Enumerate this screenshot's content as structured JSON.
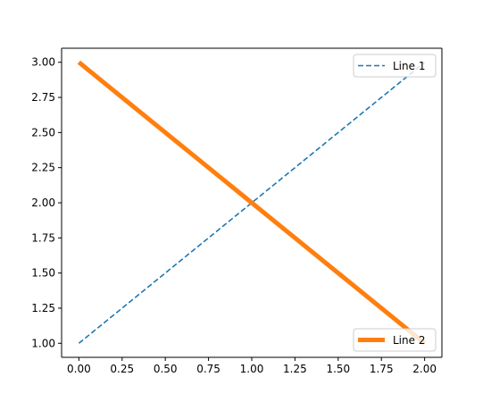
{
  "chart_data": {
    "type": "line",
    "title": "",
    "xlabel": "",
    "ylabel": "",
    "xlim": [
      -0.1,
      2.1
    ],
    "ylim": [
      0.9,
      3.1
    ],
    "x_ticks": [
      0.0,
      0.25,
      0.5,
      0.75,
      1.0,
      1.25,
      1.5,
      1.75,
      2.0
    ],
    "x_tick_labels": [
      "0.00",
      "0.25",
      "0.50",
      "0.75",
      "1.00",
      "1.25",
      "1.50",
      "1.75",
      "2.00"
    ],
    "y_ticks": [
      1.0,
      1.25,
      1.5,
      1.75,
      2.0,
      2.25,
      2.5,
      2.75,
      3.0
    ],
    "y_tick_labels": [
      "1.00",
      "1.25",
      "1.50",
      "1.75",
      "2.00",
      "2.25",
      "2.50",
      "2.75",
      "3.00"
    ],
    "grid": false,
    "series": [
      {
        "name": "Line 1",
        "x": [
          0,
          1,
          2
        ],
        "y": [
          1,
          2,
          3
        ],
        "color": "#1f77b4",
        "linestyle": "dashed",
        "legend_placement": "upper right"
      },
      {
        "name": "Line 2",
        "x": [
          0,
          1,
          2
        ],
        "y": [
          3,
          2,
          1
        ],
        "color": "#ff7f0e",
        "linestyle": "solid-thick",
        "legend_placement": "lower right"
      }
    ]
  }
}
